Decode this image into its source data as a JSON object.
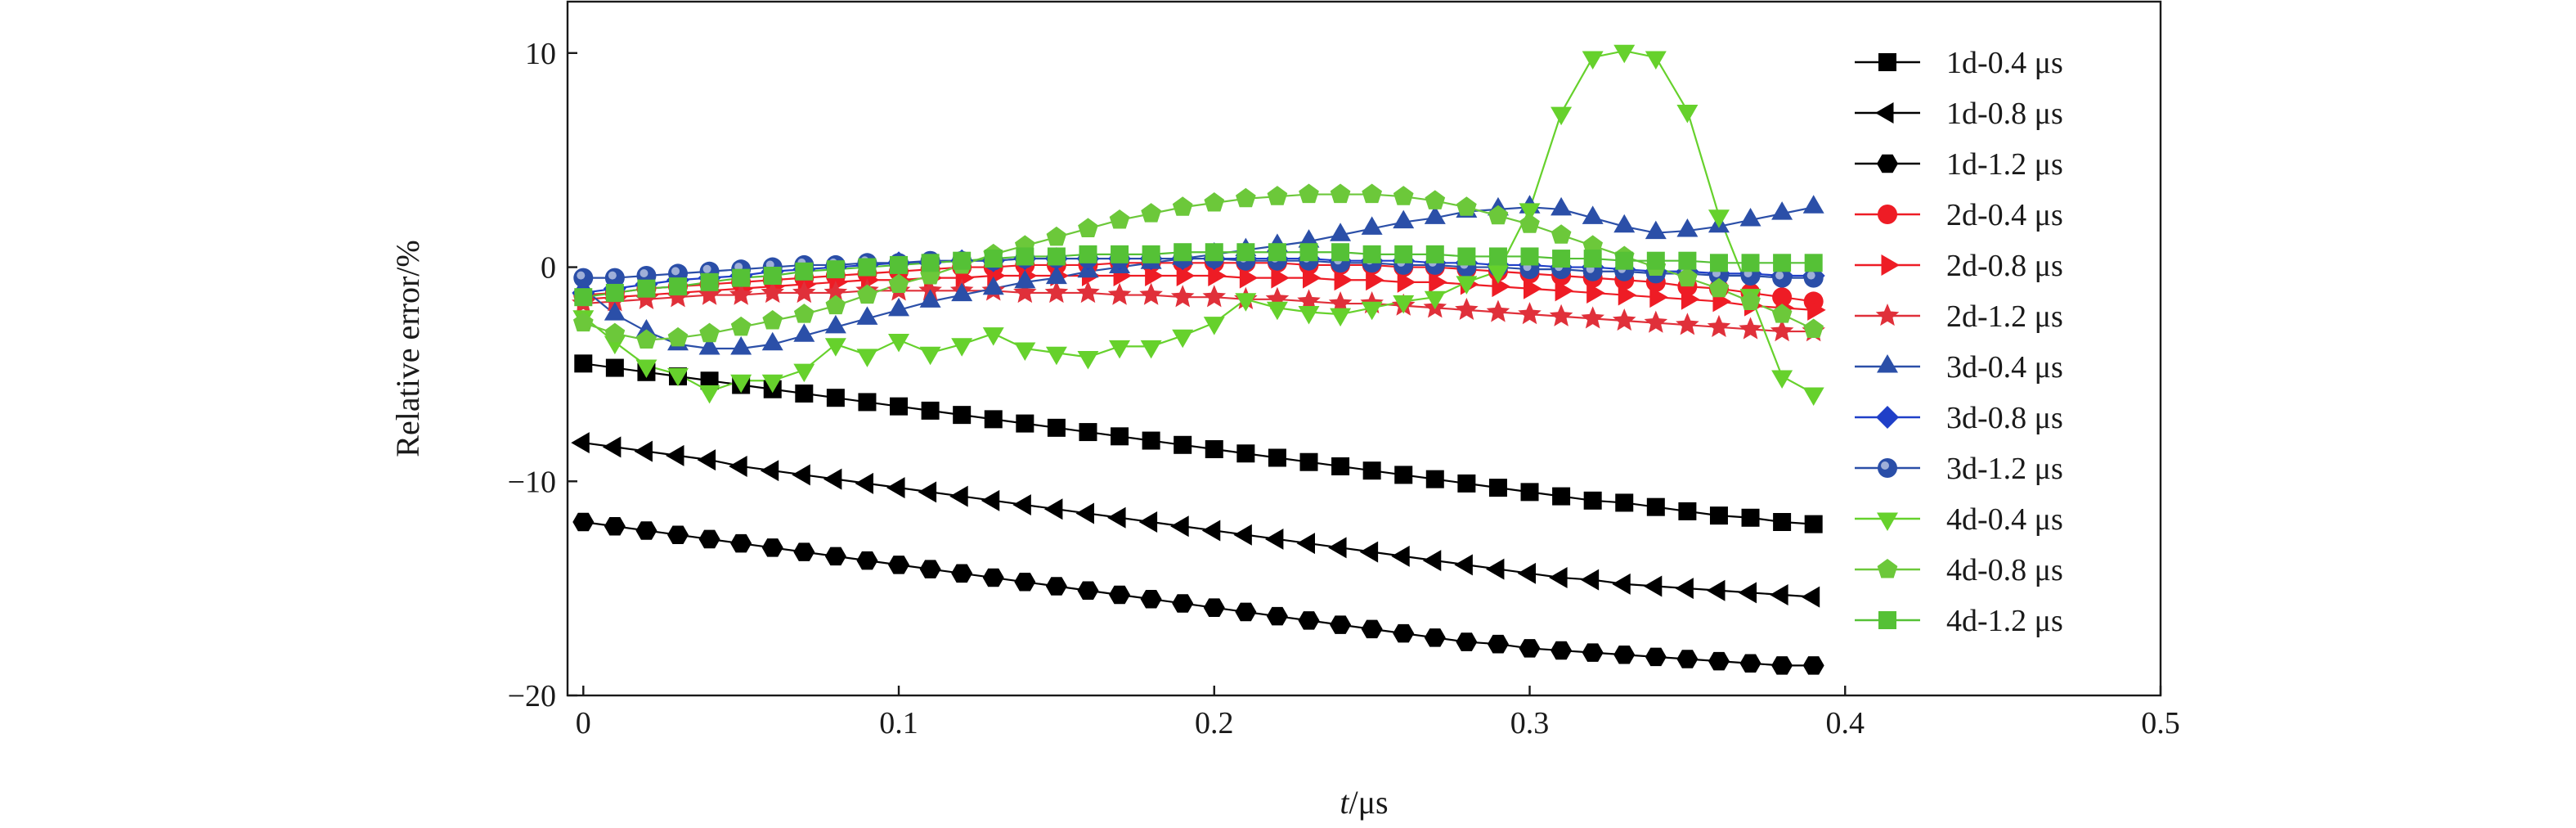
{
  "chart_data": {
    "type": "line",
    "xlabel_italic": "t",
    "xlabel_unit": "/μs",
    "ylabel": "Relative error/%",
    "xlim": [
      -0.005,
      0.5
    ],
    "ylim": [
      -20,
      12.4
    ],
    "xticks": [
      0,
      0.1,
      0.2,
      0.3,
      0.4,
      0.5
    ],
    "xtick_labels": [
      "0",
      "0.1",
      "0.2",
      "0.3",
      "0.4",
      "0.5"
    ],
    "yticks": [
      -20,
      -10,
      0,
      10
    ],
    "ytick_labels": [
      "−20",
      "−10",
      "0",
      "10"
    ],
    "grid": false,
    "legend_position": "right",
    "x": [
      0,
      0.01,
      0.02,
      0.03,
      0.04,
      0.05,
      0.06,
      0.07,
      0.08,
      0.09,
      0.1,
      0.11,
      0.12,
      0.13,
      0.14,
      0.15,
      0.16,
      0.17,
      0.18,
      0.19,
      0.2,
      0.21,
      0.22,
      0.23,
      0.24,
      0.25,
      0.26,
      0.27,
      0.28,
      0.29,
      0.3,
      0.31,
      0.32,
      0.33,
      0.34,
      0.35,
      0.36,
      0.37,
      0.38,
      0.39
    ],
    "series": [
      {
        "name": "1d-0.4 μs",
        "color": "#000000",
        "marker": "square",
        "values": [
          -4.5,
          -4.7,
          -4.9,
          -5.1,
          -5.3,
          -5.5,
          -5.7,
          -5.9,
          -6.1,
          -6.3,
          -6.5,
          -6.7,
          -6.9,
          -7.1,
          -7.3,
          -7.5,
          -7.7,
          -7.9,
          -8.1,
          -8.3,
          -8.5,
          -8.7,
          -8.9,
          -9.1,
          -9.3,
          -9.5,
          -9.7,
          -9.9,
          -10.1,
          -10.3,
          -10.5,
          -10.7,
          -10.9,
          -11.0,
          -11.2,
          -11.4,
          -11.6,
          -11.7,
          -11.9,
          -12.0
        ]
      },
      {
        "name": "1d-0.8 μs",
        "color": "#000000",
        "marker": "triangle-left",
        "values": [
          -8.2,
          -8.4,
          -8.6,
          -8.8,
          -9.0,
          -9.3,
          -9.5,
          -9.7,
          -9.9,
          -10.1,
          -10.3,
          -10.5,
          -10.7,
          -10.9,
          -11.1,
          -11.3,
          -11.5,
          -11.7,
          -11.9,
          -12.1,
          -12.3,
          -12.5,
          -12.7,
          -12.9,
          -13.1,
          -13.3,
          -13.5,
          -13.7,
          -13.9,
          -14.1,
          -14.3,
          -14.5,
          -14.6,
          -14.8,
          -14.9,
          -15.0,
          -15.1,
          -15.2,
          -15.3,
          -15.4
        ]
      },
      {
        "name": "1d-1.2 μs",
        "color": "#000000",
        "marker": "hexagon",
        "values": [
          -11.9,
          -12.1,
          -12.3,
          -12.5,
          -12.7,
          -12.9,
          -13.1,
          -13.3,
          -13.5,
          -13.7,
          -13.9,
          -14.1,
          -14.3,
          -14.5,
          -14.7,
          -14.9,
          -15.1,
          -15.3,
          -15.5,
          -15.7,
          -15.9,
          -16.1,
          -16.3,
          -16.5,
          -16.7,
          -16.9,
          -17.1,
          -17.3,
          -17.5,
          -17.6,
          -17.8,
          -17.9,
          -18.0,
          -18.1,
          -18.2,
          -18.3,
          -18.4,
          -18.5,
          -18.6,
          -18.6
        ]
      },
      {
        "name": "2d-0.4 μs",
        "color": "#ee1c25",
        "marker": "circle",
        "values": [
          -1.3,
          -1.2,
          -1.0,
          -0.9,
          -0.8,
          -0.7,
          -0.6,
          -0.5,
          -0.4,
          -0.3,
          -0.2,
          -0.1,
          0.0,
          0.0,
          0.1,
          0.1,
          0.1,
          0.2,
          0.2,
          0.2,
          0.2,
          0.2,
          0.2,
          0.1,
          0.1,
          0.1,
          0.0,
          0.0,
          -0.1,
          -0.2,
          -0.3,
          -0.4,
          -0.5,
          -0.6,
          -0.7,
          -0.9,
          -1.0,
          -1.2,
          -1.4,
          -1.6
        ]
      },
      {
        "name": "2d-0.8 μs",
        "color": "#ee1c25",
        "marker": "triangle-right",
        "values": [
          -1.5,
          -1.4,
          -1.3,
          -1.2,
          -1.1,
          -1.0,
          -0.9,
          -0.8,
          -0.7,
          -0.6,
          -0.6,
          -0.5,
          -0.5,
          -0.4,
          -0.4,
          -0.4,
          -0.4,
          -0.4,
          -0.4,
          -0.4,
          -0.4,
          -0.5,
          -0.5,
          -0.5,
          -0.6,
          -0.6,
          -0.7,
          -0.7,
          -0.8,
          -0.9,
          -1.0,
          -1.1,
          -1.2,
          -1.3,
          -1.4,
          -1.5,
          -1.6,
          -1.8,
          -1.9,
          -2.0
        ]
      },
      {
        "name": "2d-1.2 μs",
        "color": "#e0303a",
        "marker": "star",
        "values": [
          -1.7,
          -1.6,
          -1.5,
          -1.4,
          -1.3,
          -1.3,
          -1.2,
          -1.2,
          -1.2,
          -1.1,
          -1.1,
          -1.1,
          -1.1,
          -1.1,
          -1.2,
          -1.2,
          -1.2,
          -1.3,
          -1.3,
          -1.4,
          -1.4,
          -1.5,
          -1.5,
          -1.6,
          -1.7,
          -1.7,
          -1.8,
          -1.9,
          -2.0,
          -2.1,
          -2.2,
          -2.3,
          -2.4,
          -2.5,
          -2.6,
          -2.7,
          -2.8,
          -2.9,
          -3.0,
          -3.0
        ]
      },
      {
        "name": "3d-0.4 μs",
        "color": "#2b4fa8",
        "marker": "triangle-up",
        "values": [
          -1.0,
          -2.2,
          -3.0,
          -3.6,
          -3.8,
          -3.8,
          -3.6,
          -3.2,
          -2.8,
          -2.4,
          -2.0,
          -1.6,
          -1.3,
          -1.0,
          -0.7,
          -0.5,
          -0.2,
          0.0,
          0.2,
          0.4,
          0.6,
          0.8,
          1.0,
          1.2,
          1.5,
          1.8,
          2.1,
          2.3,
          2.6,
          2.7,
          2.8,
          2.7,
          2.3,
          1.9,
          1.6,
          1.7,
          1.9,
          2.2,
          2.5,
          2.8
        ]
      },
      {
        "name": "3d-0.8 μs",
        "color": "#1f3fc8",
        "marker": "diamond",
        "values": [
          -1.2,
          -1.0,
          -0.8,
          -0.6,
          -0.5,
          -0.4,
          -0.2,
          -0.1,
          0.0,
          0.1,
          0.2,
          0.2,
          0.3,
          0.3,
          0.4,
          0.4,
          0.4,
          0.4,
          0.4,
          0.4,
          0.4,
          0.4,
          0.4,
          0.4,
          0.3,
          0.3,
          0.3,
          0.2,
          0.2,
          0.1,
          0.1,
          0.0,
          0.0,
          -0.1,
          -0.2,
          -0.2,
          -0.3,
          -0.3,
          -0.4,
          -0.4
        ]
      },
      {
        "name": "3d-1.2 μs",
        "color": "#2a4ea8",
        "marker": "sphere",
        "values": [
          -0.5,
          -0.5,
          -0.4,
          -0.3,
          -0.2,
          -0.1,
          0.0,
          0.1,
          0.1,
          0.2,
          0.2,
          0.3,
          0.3,
          0.3,
          0.4,
          0.4,
          0.4,
          0.4,
          0.4,
          0.4,
          0.4,
          0.3,
          0.3,
          0.3,
          0.2,
          0.2,
          0.1,
          0.1,
          0.0,
          0.0,
          -0.1,
          -0.1,
          -0.2,
          -0.2,
          -0.3,
          -0.3,
          -0.4,
          -0.4,
          -0.5,
          -0.5
        ]
      },
      {
        "name": "4d-0.4 μs",
        "color": "#66d12c",
        "marker": "triangle-down",
        "values": [
          -2.3,
          -3.5,
          -4.6,
          -5.0,
          -5.8,
          -5.3,
          -5.3,
          -4.8,
          -3.6,
          -4.1,
          -3.4,
          -4.0,
          -3.6,
          -3.1,
          -3.8,
          -4.0,
          -4.2,
          -3.7,
          -3.7,
          -3.2,
          -2.6,
          -1.5,
          -1.9,
          -2.1,
          -2.2,
          -1.9,
          -1.6,
          -1.4,
          -0.7,
          -0.2,
          2.7,
          7.2,
          9.8,
          10.1,
          9.8,
          7.3,
          2.4,
          -1.3,
          -5.1,
          -5.9
        ]
      },
      {
        "name": "4d-0.8 μs",
        "color": "#6cc83a",
        "marker": "pentagon",
        "values": [
          -2.6,
          -3.1,
          -3.4,
          -3.3,
          -3.1,
          -2.8,
          -2.5,
          -2.2,
          -1.8,
          -1.3,
          -0.8,
          -0.4,
          0.1,
          0.6,
          1.0,
          1.4,
          1.8,
          2.2,
          2.5,
          2.8,
          3.0,
          3.2,
          3.3,
          3.4,
          3.4,
          3.4,
          3.3,
          3.1,
          2.8,
          2.4,
          2.0,
          1.5,
          1.0,
          0.5,
          0.0,
          -0.5,
          -1.0,
          -1.6,
          -2.2,
          -2.9
        ]
      },
      {
        "name": "4d-1.2 μs",
        "color": "#55c136",
        "marker": "square",
        "values": [
          -1.4,
          -1.2,
          -1.0,
          -0.9,
          -0.7,
          -0.5,
          -0.4,
          -0.2,
          -0.1,
          0.0,
          0.1,
          0.2,
          0.3,
          0.4,
          0.5,
          0.5,
          0.6,
          0.6,
          0.6,
          0.7,
          0.7,
          0.7,
          0.7,
          0.7,
          0.7,
          0.6,
          0.6,
          0.6,
          0.5,
          0.5,
          0.5,
          0.4,
          0.4,
          0.3,
          0.3,
          0.3,
          0.2,
          0.2,
          0.2,
          0.2
        ]
      }
    ]
  }
}
